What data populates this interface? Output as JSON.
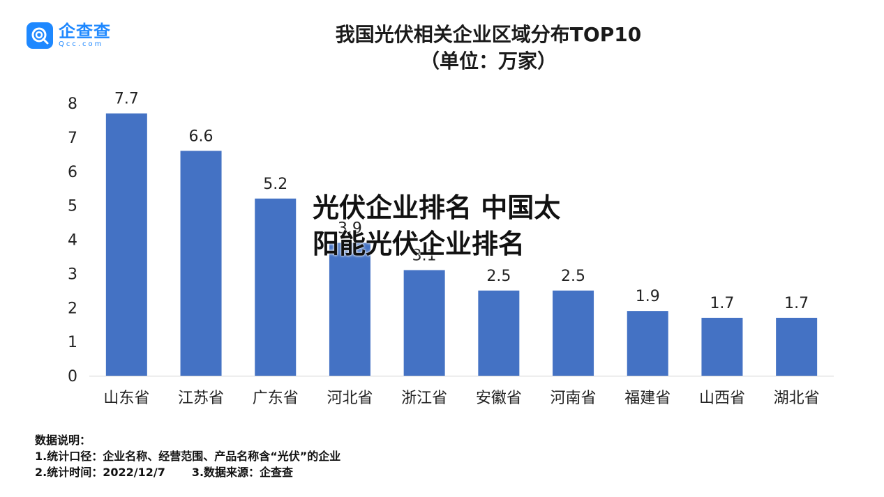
{
  "logo": {
    "name": "企查查",
    "domain": "Qcc.com"
  },
  "title": {
    "line1": "我国光伏相关企业区域分布TOP10",
    "line2": "（单位：万家）"
  },
  "overlay": {
    "line1": "光伏企业排名 中国太",
    "line2": "阳能光伏企业排名"
  },
  "notes": {
    "heading": "数据说明：",
    "line1": "1.统计口径：企业名称、经营范围、产品名称含“光伏”的企业",
    "line2a": "2.统计时间：2022/12/7",
    "line2b": "3.数据来源：企查查"
  },
  "colors": {
    "bar": "#4472c4",
    "brand": "#1e88ff"
  },
  "chart_data": {
    "type": "bar",
    "title": "我国光伏相关企业区域分布TOP10",
    "subtitle": "（单位：万家）",
    "categories": [
      "山东省",
      "江苏省",
      "广东省",
      "河北省",
      "浙江省",
      "安徽省",
      "河南省",
      "福建省",
      "山西省",
      "湖北省"
    ],
    "values": [
      7.7,
      6.6,
      5.2,
      3.9,
      3.1,
      2.5,
      2.5,
      1.9,
      1.7,
      1.7
    ],
    "value_labels": [
      "7.7",
      "6.6",
      "5.2",
      "3.9",
      "3.1",
      "2.5",
      "2.5",
      "1.9",
      "1.7",
      "1.7"
    ],
    "yticks": [
      "0",
      "1",
      "2",
      "3",
      "4",
      "5",
      "6",
      "7",
      "8"
    ],
    "ylim": [
      0,
      8
    ],
    "xlabel": "",
    "ylabel": "",
    "grid": false
  }
}
